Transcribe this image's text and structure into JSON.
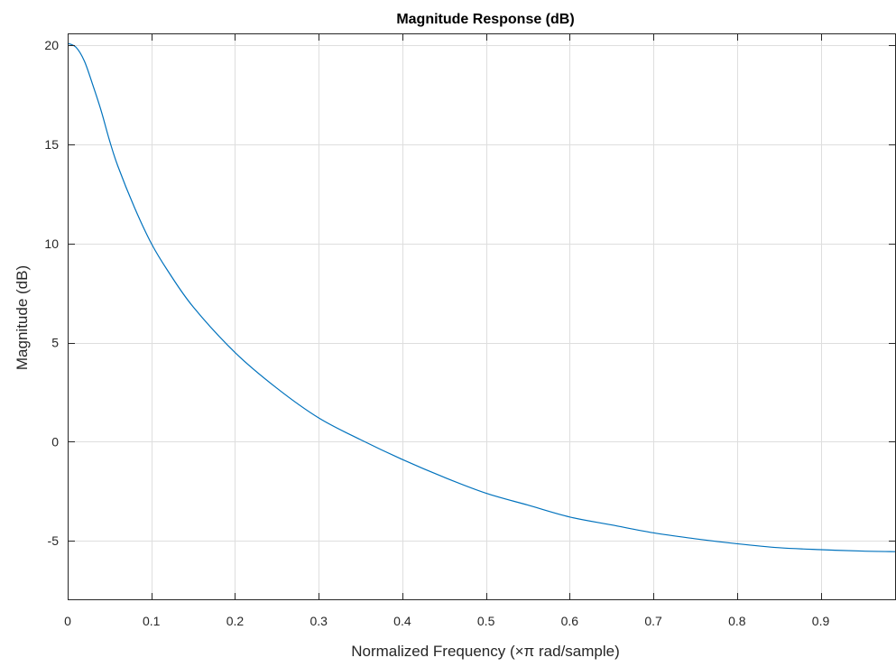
{
  "chart_data": {
    "type": "line",
    "title": "Magnitude Response (dB)",
    "xlabel": "Normalized Frequency (×π rad/sample)",
    "ylabel": "Magnitude (dB)",
    "xlim": [
      0,
      0.99
    ],
    "ylim": [
      -8,
      20.6
    ],
    "x_ticks": [
      0,
      0.1,
      0.2,
      0.3,
      0.4,
      0.5,
      0.6,
      0.7,
      0.8,
      0.9
    ],
    "x_tick_labels": [
      "0",
      "0.1",
      "0.2",
      "0.3",
      "0.4",
      "0.5",
      "0.6",
      "0.7",
      "0.8",
      "0.9"
    ],
    "y_ticks": [
      -5,
      0,
      5,
      10,
      15,
      20
    ],
    "y_tick_labels": [
      "-5",
      "0",
      "5",
      "10",
      "15",
      "20"
    ],
    "grid": true,
    "series": [
      {
        "color": "#0072bd",
        "x": [
          0,
          0.01,
          0.02,
          0.03,
          0.04,
          0.05,
          0.06,
          0.08,
          0.1,
          0.12,
          0.15,
          0.2,
          0.25,
          0.3,
          0.35,
          0.4,
          0.45,
          0.5,
          0.55,
          0.6,
          0.65,
          0.7,
          0.75,
          0.8,
          0.85,
          0.9,
          0.95,
          0.99
        ],
        "y": [
          20.1,
          19.9,
          19.2,
          18.0,
          16.7,
          15.2,
          13.9,
          11.8,
          10.0,
          8.6,
          6.8,
          4.5,
          2.7,
          1.2,
          0.1,
          -0.9,
          -1.8,
          -2.6,
          -3.2,
          -3.8,
          -4.2,
          -4.6,
          -4.9,
          -5.15,
          -5.35,
          -5.45,
          -5.52,
          -5.55
        ]
      }
    ]
  }
}
